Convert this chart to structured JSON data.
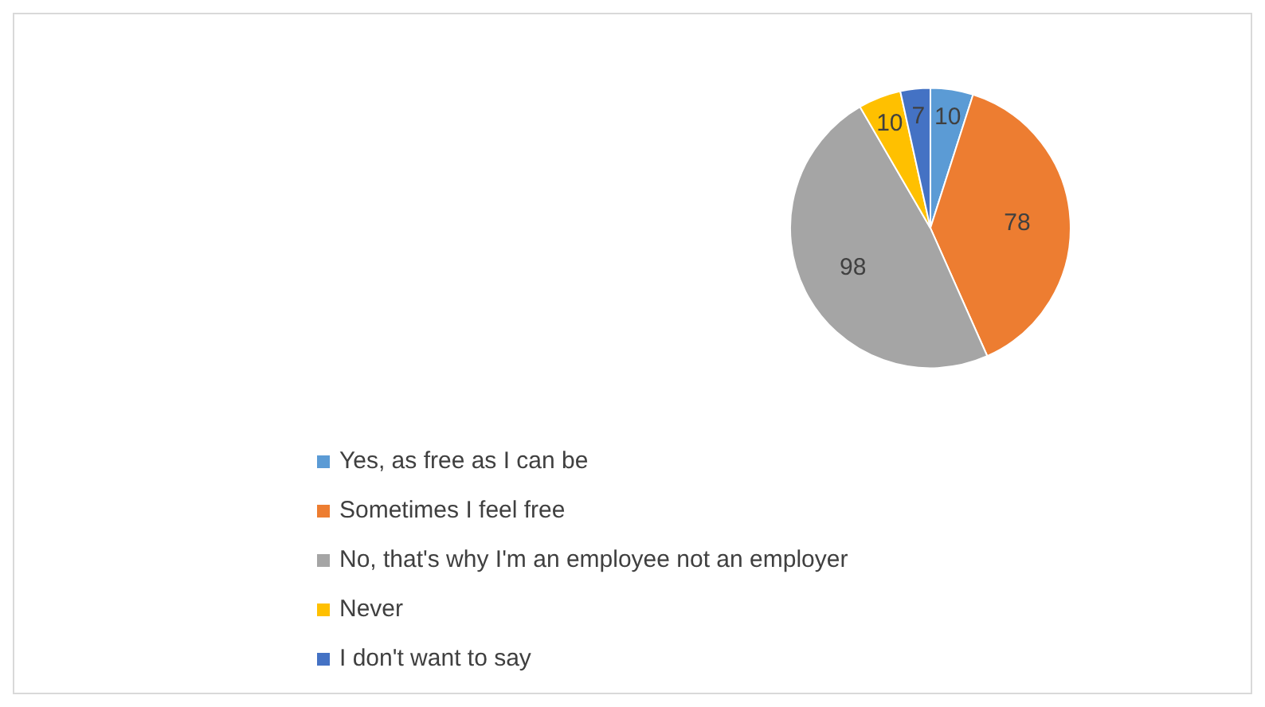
{
  "chart_data": {
    "type": "pie",
    "categories": [
      "Yes, as free as I can be",
      "Sometimes I feel free",
      "No, that's why I'm an employee not an employer",
      "Never",
      "I don't want to say"
    ],
    "values": [
      10,
      78,
      98,
      10,
      7
    ],
    "colors": [
      "#5b9bd5",
      "#ed7d31",
      "#a5a5a5",
      "#ffc000",
      "#4472c4"
    ],
    "data_labels": true,
    "legend": "bottom"
  }
}
